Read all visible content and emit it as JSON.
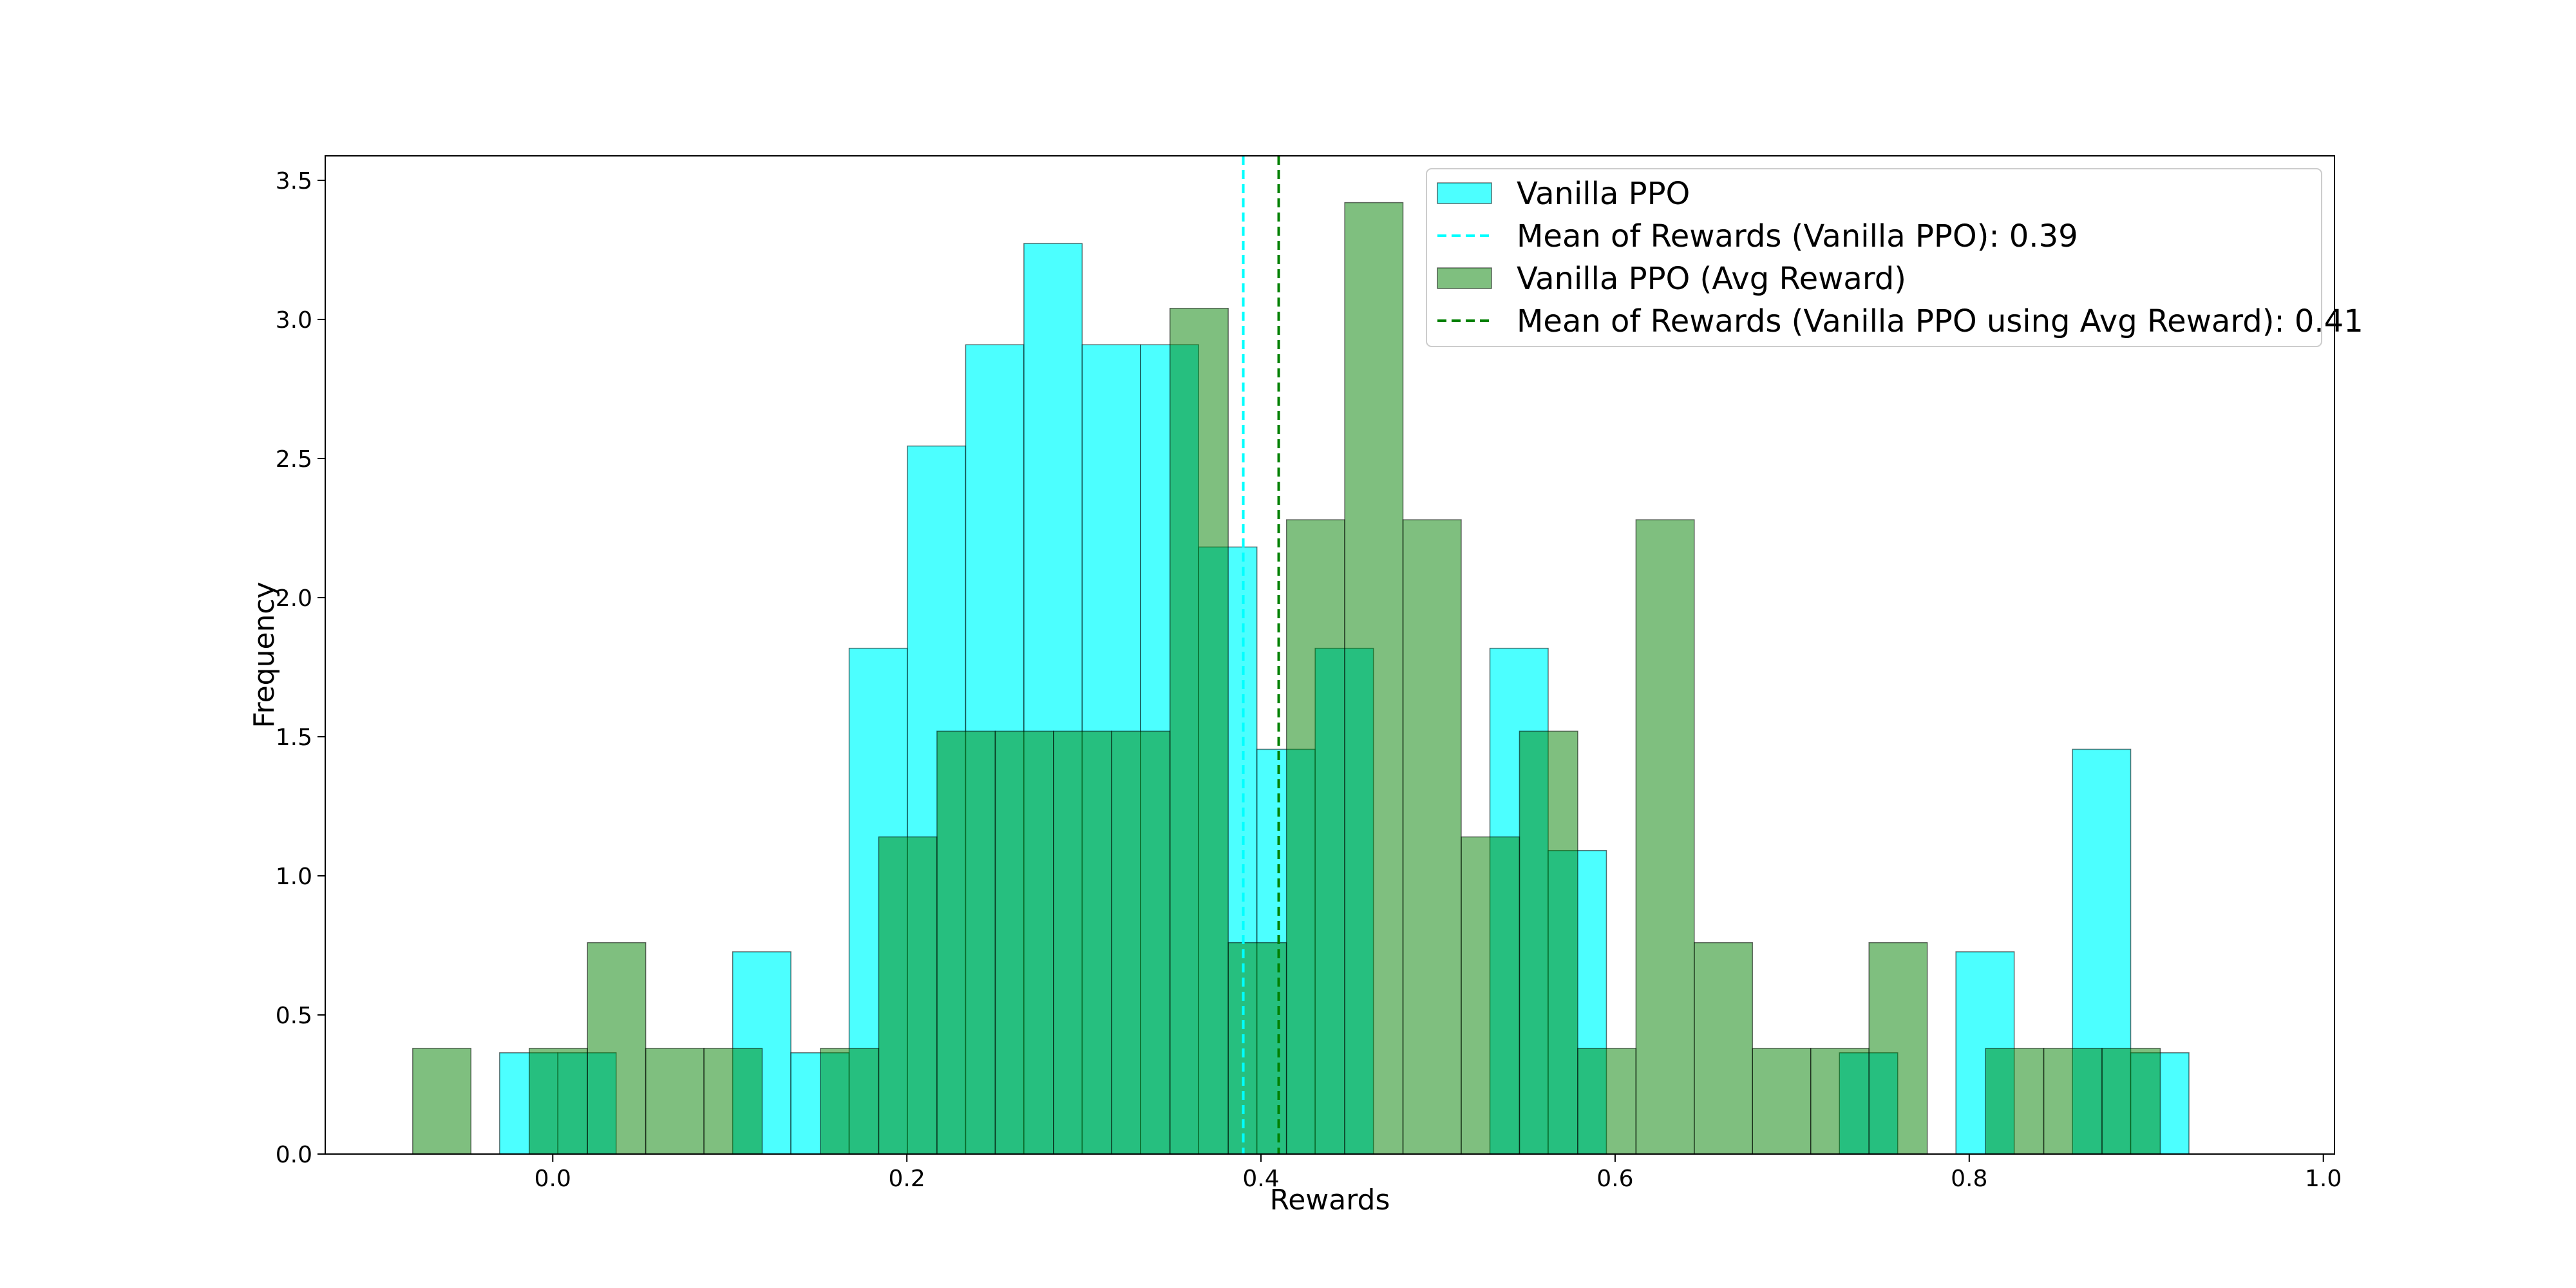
{
  "chart_data": {
    "type": "histogram",
    "xlabel": "Rewards",
    "ylabel": "Frequency",
    "xlim": [
      -0.1285,
      1.0063
    ],
    "ylim": [
      0,
      3.588
    ],
    "grid": false,
    "legend_position": "top-right",
    "x_ticks": [
      "0.0",
      "0.2",
      "0.4",
      "0.6",
      "0.8",
      "1.0"
    ],
    "y_ticks": [
      "0.0",
      "0.5",
      "1.0",
      "1.5",
      "2.0",
      "2.5",
      "3.0",
      "3.5"
    ],
    "series": [
      {
        "name": "Vanilla PPO",
        "kind": "bars",
        "color": "#00ffff",
        "alpha": 0.7,
        "bin_width": 0.0329,
        "bins_left": [
          -0.03,
          0.0029,
          0.0358,
          0.0687,
          0.1016,
          0.1345,
          0.1674,
          0.2003,
          0.2332,
          0.2661,
          0.299,
          0.3319,
          0.3648,
          0.3977,
          0.4306,
          0.4635,
          0.4964,
          0.5293,
          0.5622,
          0.5951,
          0.628,
          0.6609,
          0.6938,
          0.7267,
          0.7596,
          0.7925,
          0.8254,
          0.8583,
          0.8912
        ],
        "values": [
          0.364,
          0.364,
          0,
          0,
          0.727,
          0.364,
          1.818,
          2.545,
          2.909,
          3.273,
          2.909,
          2.909,
          2.182,
          1.455,
          1.818,
          0,
          0,
          1.818,
          1.091,
          0,
          0,
          0,
          0,
          0.364,
          0,
          0.727,
          0,
          1.455,
          0.364
        ]
      },
      {
        "name": "Vanilla PPO (Avg Reward)",
        "kind": "bars",
        "color": "#008000",
        "alpha": 0.5,
        "bin_width": 0.0329,
        "bins_left": [
          -0.0791,
          -0.0462,
          -0.0133,
          0.0196,
          0.0525,
          0.0854,
          0.1183,
          0.1512,
          0.1841,
          0.217,
          0.2499,
          0.2828,
          0.3157,
          0.3486,
          0.3815,
          0.4144,
          0.4473,
          0.4802,
          0.5131,
          0.546,
          0.5789,
          0.6118,
          0.6447,
          0.6776,
          0.7105,
          0.7434,
          0.7763,
          0.8092,
          0.8421,
          0.875
        ],
        "values": [
          0.38,
          0,
          0.38,
          0.76,
          0.38,
          0.38,
          0,
          0.38,
          1.14,
          1.52,
          1.52,
          1.52,
          1.52,
          3.04,
          0.76,
          2.28,
          3.42,
          2.28,
          1.14,
          1.52,
          0.38,
          2.28,
          0.76,
          0.38,
          0.38,
          0.76,
          0,
          0.38,
          0.38,
          0.38
        ]
      }
    ],
    "mean_lines": [
      {
        "name": "Mean of Rewards (Vanilla PPO): 0.39",
        "x": 0.39,
        "color": "#00ffff",
        "style": "dashed"
      },
      {
        "name": "Mean of Rewards (Vanilla PPO using Avg Reward): 0.41",
        "x": 0.41,
        "color": "#008000",
        "style": "dashed"
      }
    ],
    "legend": [
      {
        "label": "Vanilla PPO",
        "kind": "patch",
        "color": "#00ffff"
      },
      {
        "label": "Mean of Rewards (Vanilla PPO): 0.39",
        "kind": "line",
        "color": "#00ffff"
      },
      {
        "label": "Vanilla PPO (Avg Reward)",
        "kind": "patch",
        "color": "#008000"
      },
      {
        "label": "Mean of Rewards (Vanilla PPO using Avg Reward): 0.41",
        "kind": "line",
        "color": "#008000"
      }
    ]
  }
}
